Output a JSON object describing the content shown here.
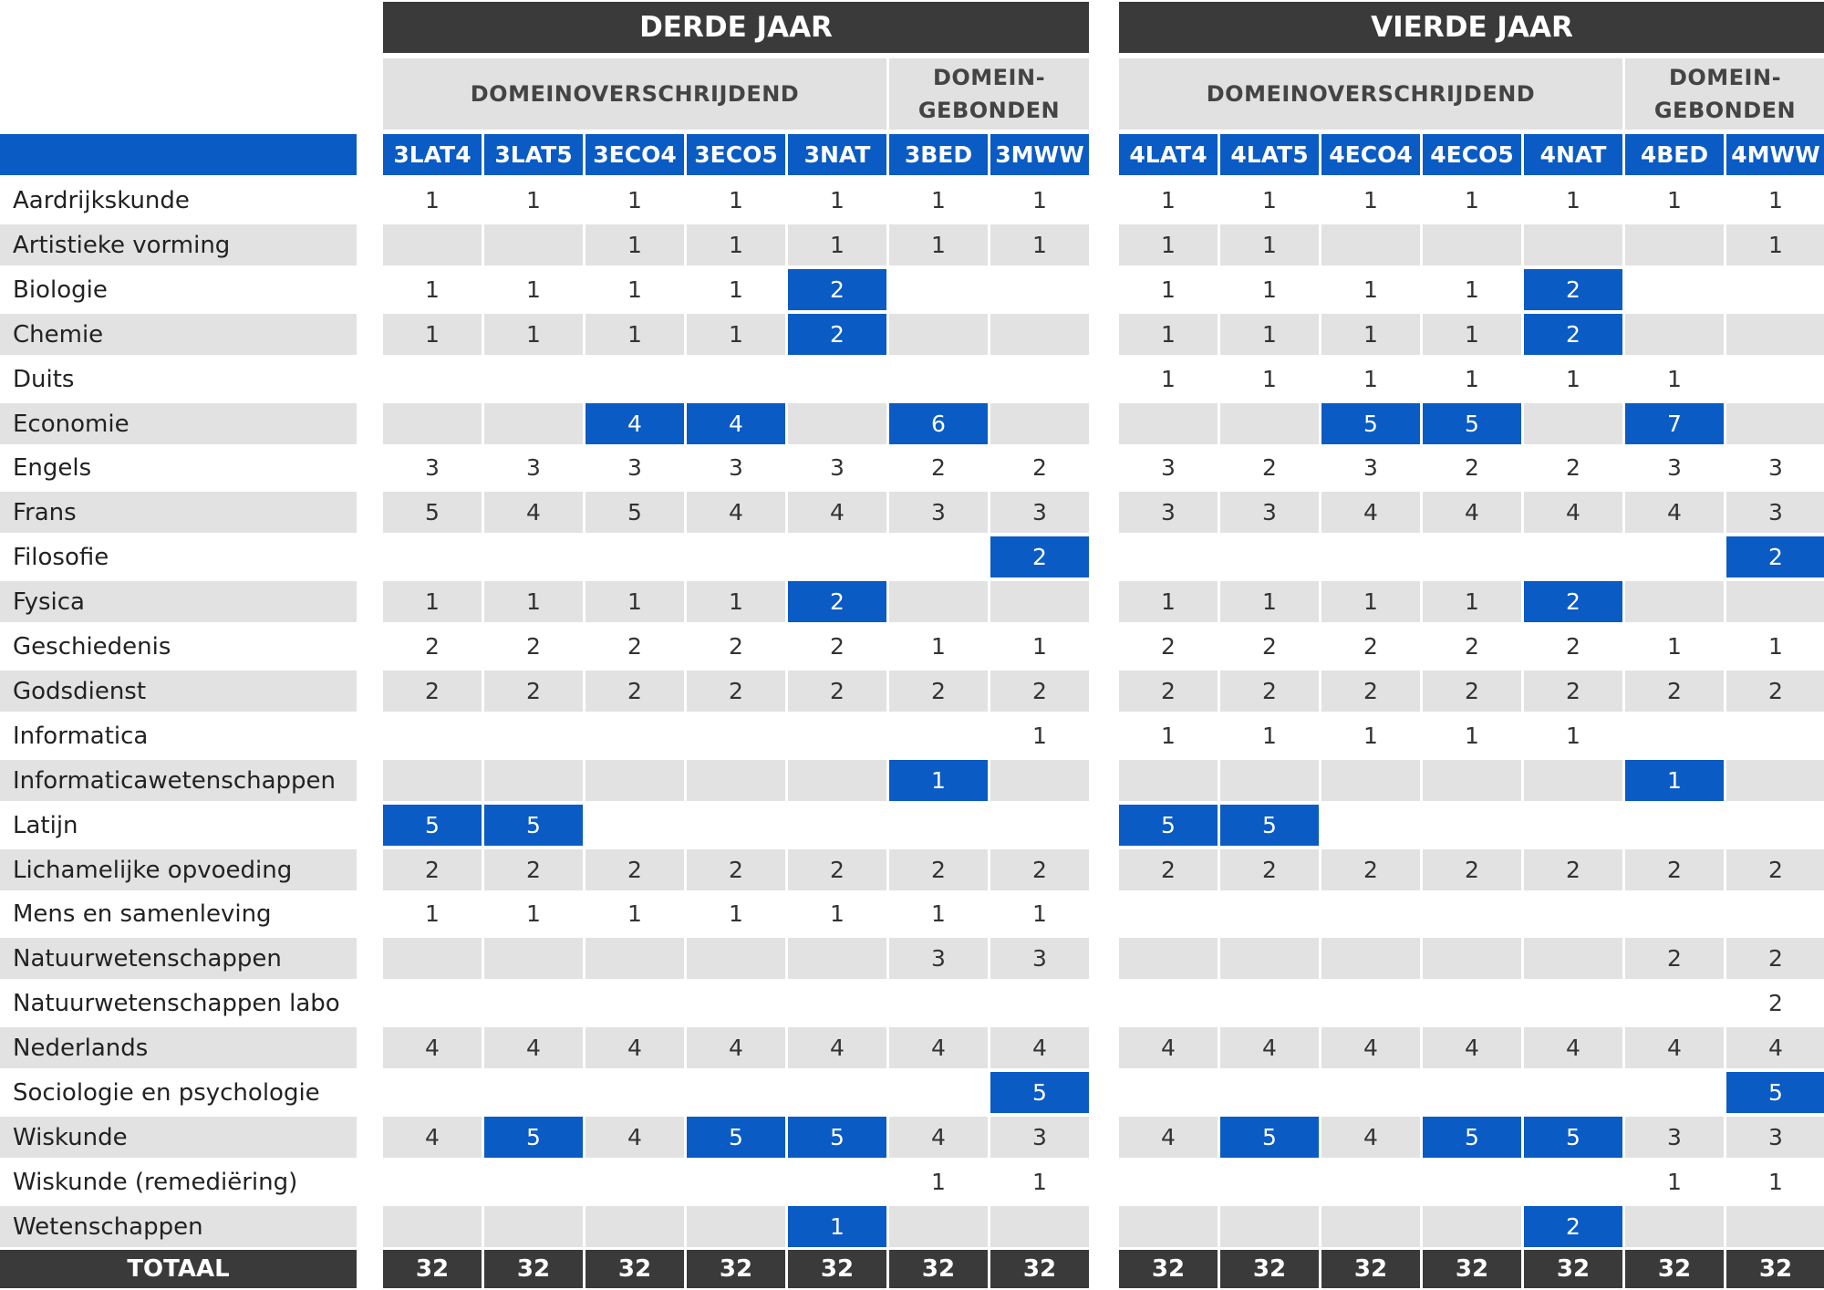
{
  "years": [
    {
      "title": "DERDE JAAR",
      "groups": [
        {
          "label": "DOMEINOVERSCHRIJDEND",
          "span": 5
        },
        {
          "label": "DOMEIN-\nGEBONDEN",
          "span": 2
        }
      ],
      "codes": [
        "3LAT4",
        "3LAT5",
        "3ECO4",
        "3ECO5",
        "3NAT",
        "3BED",
        "3MWW"
      ]
    },
    {
      "title": "VIERDE JAAR",
      "groups": [
        {
          "label": "DOMEINOVERSCHRIJDEND",
          "span": 5
        },
        {
          "label": "DOMEIN-\nGEBONDEN",
          "span": 2
        }
      ],
      "codes": [
        "4LAT4",
        "4LAT5",
        "4ECO4",
        "4ECO5",
        "4NAT",
        "4BED",
        "4MWW"
      ]
    }
  ],
  "colors": {
    "accent_blue": "#0a5bc4",
    "header_dark": "#3a3a3a",
    "stripe_gray": "#e2e2e2"
  },
  "rows": [
    {
      "subject": "Aardrijkskunde",
      "y3": [
        "1",
        "1",
        "1",
        "1",
        "1",
        "1",
        "1"
      ],
      "h3": [
        0,
        0,
        0,
        0,
        0,
        0,
        0
      ],
      "y4": [
        "1",
        "1",
        "1",
        "1",
        "1",
        "1",
        "1"
      ],
      "h4": [
        0,
        0,
        0,
        0,
        0,
        0,
        0
      ]
    },
    {
      "subject": "Artistieke vorming",
      "y3": [
        "",
        "",
        "1",
        "1",
        "1",
        "1",
        "1"
      ],
      "h3": [
        0,
        0,
        0,
        0,
        0,
        0,
        0
      ],
      "y4": [
        "1",
        "1",
        "",
        "",
        "",
        "",
        "1"
      ],
      "h4": [
        0,
        0,
        0,
        0,
        0,
        0,
        0
      ]
    },
    {
      "subject": "Biologie",
      "y3": [
        "1",
        "1",
        "1",
        "1",
        "2",
        "",
        ""
      ],
      "h3": [
        0,
        0,
        0,
        0,
        1,
        0,
        0
      ],
      "y4": [
        "1",
        "1",
        "1",
        "1",
        "2",
        "",
        ""
      ],
      "h4": [
        0,
        0,
        0,
        0,
        1,
        0,
        0
      ]
    },
    {
      "subject": "Chemie",
      "y3": [
        "1",
        "1",
        "1",
        "1",
        "2",
        "",
        ""
      ],
      "h3": [
        0,
        0,
        0,
        0,
        1,
        0,
        0
      ],
      "y4": [
        "1",
        "1",
        "1",
        "1",
        "2",
        "",
        ""
      ],
      "h4": [
        0,
        0,
        0,
        0,
        1,
        0,
        0
      ]
    },
    {
      "subject": "Duits",
      "y3": [
        "",
        "",
        "",
        "",
        "",
        "",
        ""
      ],
      "h3": [
        0,
        0,
        0,
        0,
        0,
        0,
        0
      ],
      "y4": [
        "1",
        "1",
        "1",
        "1",
        "1",
        "1",
        ""
      ],
      "h4": [
        0,
        0,
        0,
        0,
        0,
        0,
        0
      ]
    },
    {
      "subject": "Economie",
      "y3": [
        "",
        "",
        "4",
        "4",
        "",
        "6",
        ""
      ],
      "h3": [
        0,
        0,
        1,
        1,
        0,
        1,
        0
      ],
      "y4": [
        "",
        "",
        "5",
        "5",
        "",
        "7",
        ""
      ],
      "h4": [
        0,
        0,
        1,
        1,
        0,
        1,
        0
      ]
    },
    {
      "subject": "Engels",
      "y3": [
        "3",
        "3",
        "3",
        "3",
        "3",
        "2",
        "2"
      ],
      "h3": [
        0,
        0,
        0,
        0,
        0,
        0,
        0
      ],
      "y4": [
        "3",
        "2",
        "3",
        "2",
        "2",
        "3",
        "3"
      ],
      "h4": [
        0,
        0,
        0,
        0,
        0,
        0,
        0
      ]
    },
    {
      "subject": "Frans",
      "y3": [
        "5",
        "4",
        "5",
        "4",
        "4",
        "3",
        "3"
      ],
      "h3": [
        0,
        0,
        0,
        0,
        0,
        0,
        0
      ],
      "y4": [
        "3",
        "3",
        "4",
        "4",
        "4",
        "4",
        "3"
      ],
      "h4": [
        0,
        0,
        0,
        0,
        0,
        0,
        0
      ]
    },
    {
      "subject": "Filosofie",
      "y3": [
        "",
        "",
        "",
        "",
        "",
        "",
        "2"
      ],
      "h3": [
        0,
        0,
        0,
        0,
        0,
        0,
        1
      ],
      "y4": [
        "",
        "",
        "",
        "",
        "",
        "",
        "2"
      ],
      "h4": [
        0,
        0,
        0,
        0,
        0,
        0,
        1
      ]
    },
    {
      "subject": "Fysica",
      "y3": [
        "1",
        "1",
        "1",
        "1",
        "2",
        "",
        ""
      ],
      "h3": [
        0,
        0,
        0,
        0,
        1,
        0,
        0
      ],
      "y4": [
        "1",
        "1",
        "1",
        "1",
        "2",
        "",
        ""
      ],
      "h4": [
        0,
        0,
        0,
        0,
        1,
        0,
        0
      ]
    },
    {
      "subject": "Geschiedenis",
      "y3": [
        "2",
        "2",
        "2",
        "2",
        "2",
        "1",
        "1"
      ],
      "h3": [
        0,
        0,
        0,
        0,
        0,
        0,
        0
      ],
      "y4": [
        "2",
        "2",
        "2",
        "2",
        "2",
        "1",
        "1"
      ],
      "h4": [
        0,
        0,
        0,
        0,
        0,
        0,
        0
      ]
    },
    {
      "subject": "Godsdienst",
      "y3": [
        "2",
        "2",
        "2",
        "2",
        "2",
        "2",
        "2"
      ],
      "h3": [
        0,
        0,
        0,
        0,
        0,
        0,
        0
      ],
      "y4": [
        "2",
        "2",
        "2",
        "2",
        "2",
        "2",
        "2"
      ],
      "h4": [
        0,
        0,
        0,
        0,
        0,
        0,
        0
      ]
    },
    {
      "subject": "Informatica",
      "y3": [
        "",
        "",
        "",
        "",
        "",
        "",
        "1"
      ],
      "h3": [
        0,
        0,
        0,
        0,
        0,
        0,
        0
      ],
      "y4": [
        "1",
        "1",
        "1",
        "1",
        "1",
        "",
        ""
      ],
      "h4": [
        0,
        0,
        0,
        0,
        0,
        0,
        0
      ]
    },
    {
      "subject": "Informaticawetenschappen",
      "y3": [
        "",
        "",
        "",
        "",
        "",
        "1",
        ""
      ],
      "h3": [
        0,
        0,
        0,
        0,
        0,
        1,
        0
      ],
      "y4": [
        "",
        "",
        "",
        "",
        "",
        "1",
        ""
      ],
      "h4": [
        0,
        0,
        0,
        0,
        0,
        1,
        0
      ]
    },
    {
      "subject": "Latijn",
      "y3": [
        "5",
        "5",
        "",
        "",
        "",
        "",
        ""
      ],
      "h3": [
        1,
        1,
        0,
        0,
        0,
        0,
        0
      ],
      "y4": [
        "5",
        "5",
        "",
        "",
        "",
        "",
        ""
      ],
      "h4": [
        1,
        1,
        0,
        0,
        0,
        0,
        0
      ]
    },
    {
      "subject": "Lichamelijke opvoeding",
      "y3": [
        "2",
        "2",
        "2",
        "2",
        "2",
        "2",
        "2"
      ],
      "h3": [
        0,
        0,
        0,
        0,
        0,
        0,
        0
      ],
      "y4": [
        "2",
        "2",
        "2",
        "2",
        "2",
        "2",
        "2"
      ],
      "h4": [
        0,
        0,
        0,
        0,
        0,
        0,
        0
      ]
    },
    {
      "subject": "Mens en samenleving",
      "y3": [
        "1",
        "1",
        "1",
        "1",
        "1",
        "1",
        "1"
      ],
      "h3": [
        0,
        0,
        0,
        0,
        0,
        0,
        0
      ],
      "y4": [
        "",
        "",
        "",
        "",
        "",
        "",
        ""
      ],
      "h4": [
        0,
        0,
        0,
        0,
        0,
        0,
        0
      ]
    },
    {
      "subject": "Natuurwetenschappen",
      "y3": [
        "",
        "",
        "",
        "",
        "",
        "3",
        "3"
      ],
      "h3": [
        0,
        0,
        0,
        0,
        0,
        0,
        0
      ],
      "y4": [
        "",
        "",
        "",
        "",
        "",
        "2",
        "2"
      ],
      "h4": [
        0,
        0,
        0,
        0,
        0,
        0,
        0
      ]
    },
    {
      "subject": "Natuurwetenschappen labo",
      "y3": [
        "",
        "",
        "",
        "",
        "",
        "",
        ""
      ],
      "h3": [
        0,
        0,
        0,
        0,
        0,
        0,
        0
      ],
      "y4": [
        "",
        "",
        "",
        "",
        "",
        "",
        "2"
      ],
      "h4": [
        0,
        0,
        0,
        0,
        0,
        0,
        0
      ]
    },
    {
      "subject": "Nederlands",
      "y3": [
        "4",
        "4",
        "4",
        "4",
        "4",
        "4",
        "4"
      ],
      "h3": [
        0,
        0,
        0,
        0,
        0,
        0,
        0
      ],
      "y4": [
        "4",
        "4",
        "4",
        "4",
        "4",
        "4",
        "4"
      ],
      "h4": [
        0,
        0,
        0,
        0,
        0,
        0,
        0
      ]
    },
    {
      "subject": "Sociologie en psychologie",
      "y3": [
        "",
        "",
        "",
        "",
        "",
        "",
        "5"
      ],
      "h3": [
        0,
        0,
        0,
        0,
        0,
        0,
        1
      ],
      "y4": [
        "",
        "",
        "",
        "",
        "",
        "",
        "5"
      ],
      "h4": [
        0,
        0,
        0,
        0,
        0,
        0,
        1
      ]
    },
    {
      "subject": "Wiskunde",
      "y3": [
        "4",
        "5",
        "4",
        "5",
        "5",
        "4",
        "3"
      ],
      "h3": [
        0,
        1,
        0,
        1,
        1,
        0,
        0
      ],
      "y4": [
        "4",
        "5",
        "4",
        "5",
        "5",
        "3",
        "3"
      ],
      "h4": [
        0,
        1,
        0,
        1,
        1,
        0,
        0
      ]
    },
    {
      "subject": "Wiskunde (remediëring)",
      "y3": [
        "",
        "",
        "",
        "",
        "",
        "1",
        "1"
      ],
      "h3": [
        0,
        0,
        0,
        0,
        0,
        0,
        0
      ],
      "y4": [
        "",
        "",
        "",
        "",
        "",
        "1",
        "1"
      ],
      "h4": [
        0,
        0,
        0,
        0,
        0,
        0,
        0
      ]
    },
    {
      "subject": "Wetenschappen",
      "y3": [
        "",
        "",
        "",
        "",
        "1",
        "",
        ""
      ],
      "h3": [
        0,
        0,
        0,
        0,
        1,
        0,
        0
      ],
      "y4": [
        "",
        "",
        "",
        "",
        "2",
        "",
        ""
      ],
      "h4": [
        0,
        0,
        0,
        0,
        1,
        0,
        0
      ]
    }
  ],
  "total": {
    "label": "TOTAAL",
    "y3": [
      "32",
      "32",
      "32",
      "32",
      "32",
      "32",
      "32"
    ],
    "y4": [
      "32",
      "32",
      "32",
      "32",
      "32",
      "32",
      "32"
    ]
  }
}
